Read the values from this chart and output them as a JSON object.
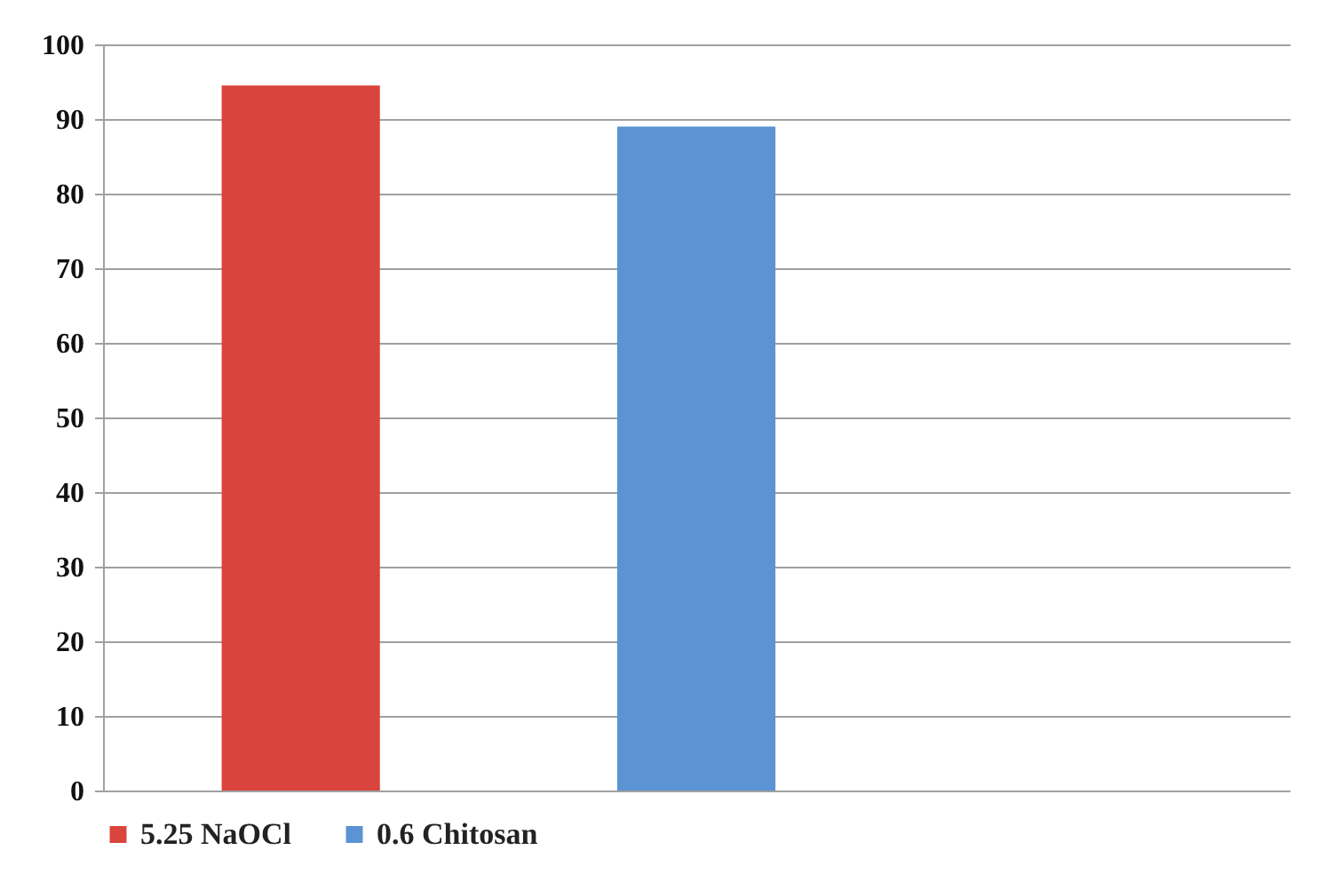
{
  "chart_data": {
    "type": "bar",
    "categories": [
      null,
      null,
      null
    ],
    "series": [
      {
        "name": "5.25   NaOCl",
        "color": "#d9443d",
        "values": [
          94.5,
          null,
          null
        ]
      },
      {
        "name": "0.6   Chitosan",
        "color": "#5b93d3",
        "values": [
          null,
          89,
          null
        ]
      }
    ],
    "ylim": [
      0,
      100
    ],
    "yticks": [
      0,
      10,
      20,
      30,
      40,
      50,
      60,
      70,
      80,
      90,
      100
    ],
    "grid": "y",
    "legend": "bottom"
  }
}
